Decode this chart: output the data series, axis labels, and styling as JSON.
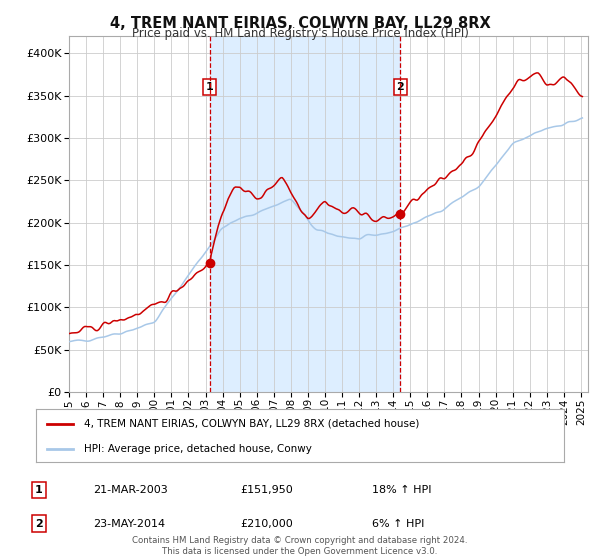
{
  "title": "4, TREM NANT EIRIAS, COLWYN BAY, LL29 8RX",
  "subtitle": "Price paid vs. HM Land Registry's House Price Index (HPI)",
  "legend_line1": "4, TREM NANT EIRIAS, COLWYN BAY, LL29 8RX (detached house)",
  "legend_line2": "HPI: Average price, detached house, Conwy",
  "marker1_date": "21-MAR-2003",
  "marker1_price": 151950,
  "marker1_label": "18% ↑ HPI",
  "marker2_date": "23-MAY-2014",
  "marker2_price": 210000,
  "marker2_label": "6% ↑ HPI",
  "footer": "Contains HM Land Registry data © Crown copyright and database right 2024.\nThis data is licensed under the Open Government Licence v3.0.",
  "hpi_color": "#a8c8e8",
  "property_color": "#cc0000",
  "vline_color": "#cc0000",
  "shade_color": "#ddeeff",
  "background_color": "#ffffff",
  "grid_color": "#cccccc",
  "ylim": [
    0,
    420000
  ],
  "yticks": [
    0,
    50000,
    100000,
    150000,
    200000,
    250000,
    300000,
    350000,
    400000
  ]
}
